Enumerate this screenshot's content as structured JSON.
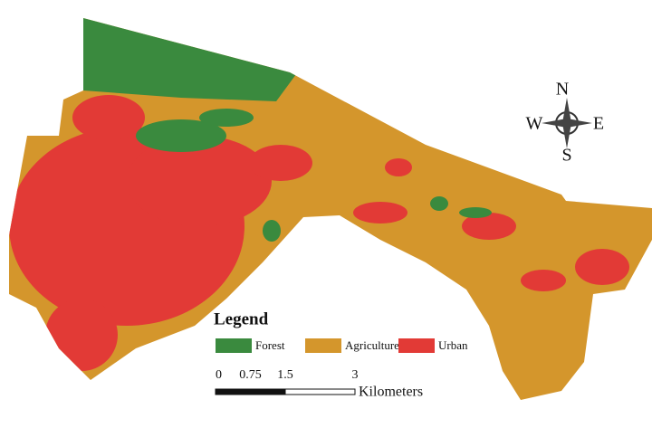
{
  "legend": {
    "title": "Legend",
    "items": [
      {
        "label": "Forest",
        "color": "#3a8a3e"
      },
      {
        "label": "Agriculture",
        "color": "#d4962c"
      },
      {
        "label": "Urban",
        "color": "#e23a36"
      }
    ]
  },
  "scale_bar": {
    "ticks": [
      0,
      0.75,
      1.5,
      3
    ],
    "unit": "Kilometers"
  },
  "compass": {
    "north": "N",
    "east": "E",
    "south": "S",
    "west": "W"
  }
}
